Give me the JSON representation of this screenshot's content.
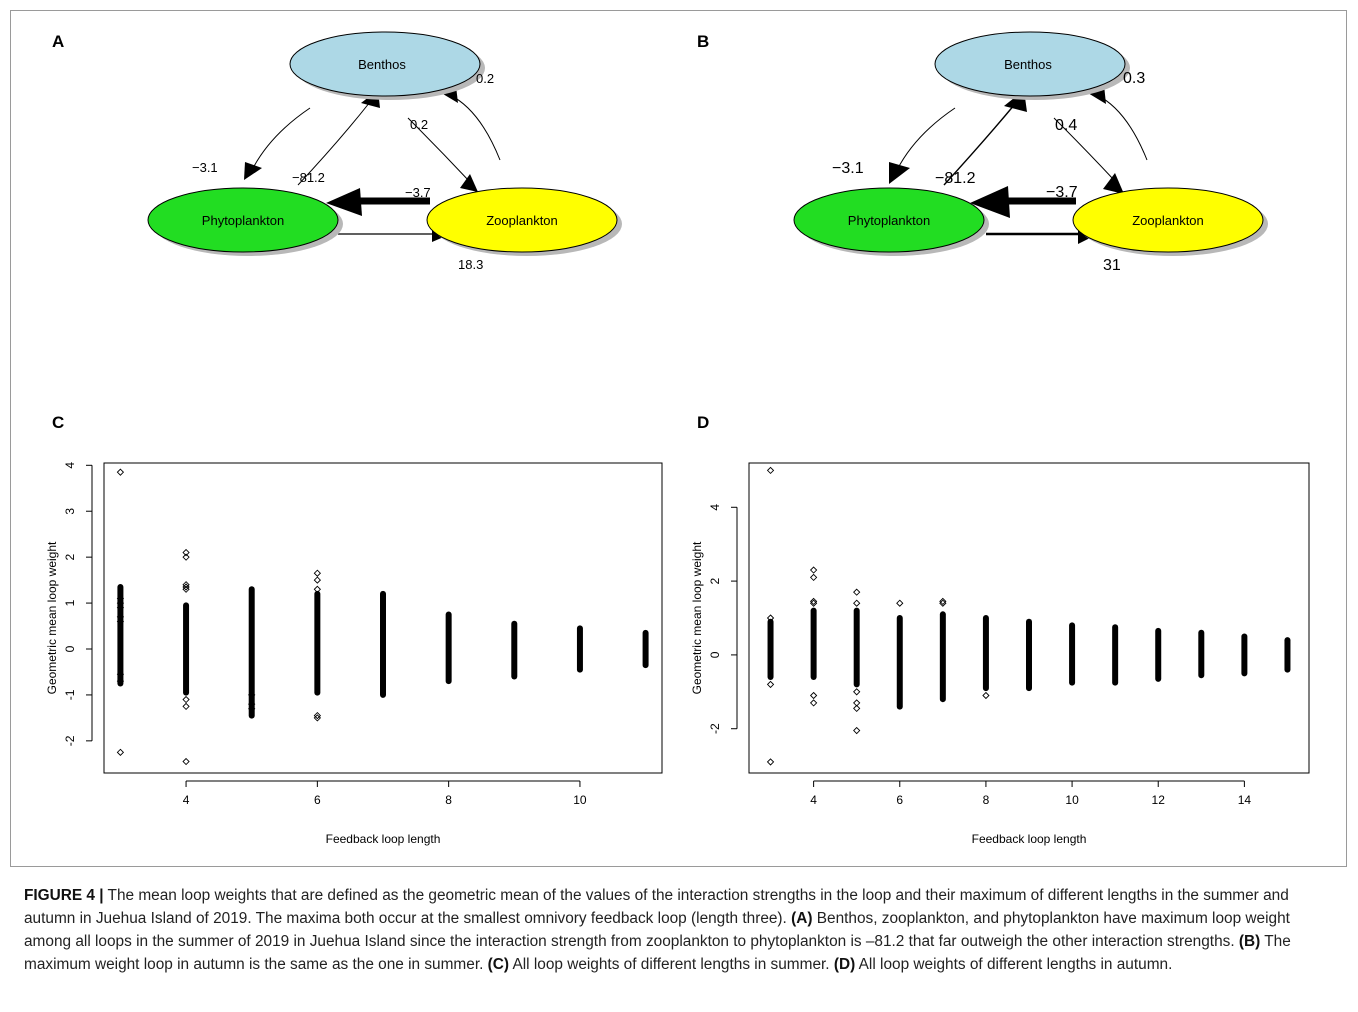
{
  "panels": {
    "A": {
      "letter": "A",
      "nodes": {
        "benthos": "Benthos",
        "phytoplankton": "Phytoplankton",
        "zooplankton": "Zooplankton"
      },
      "edge_labels": {
        "b_to_p": "−3.1",
        "z_to_p": "−81.2",
        "p_to_z_upper": "−3.7",
        "b_to_z": "0.2",
        "z_to_b": "0.2",
        "p_to_z": "18.3"
      },
      "colors": {
        "benthos": "#add8e6",
        "phytoplankton": "#22dd22",
        "zooplankton": "#ffff00"
      }
    },
    "B": {
      "letter": "B",
      "nodes": {
        "benthos": "Benthos",
        "phytoplankton": "Phytoplankton",
        "zooplankton": "Zooplankton"
      },
      "edge_labels": {
        "b_to_p": "−3.1",
        "z_to_p": "−81.2",
        "p_to_z_upper": "−3.7",
        "b_to_z": "0.4",
        "z_to_b": "0.3",
        "p_to_z": "31"
      },
      "colors": {
        "benthos": "#add8e6",
        "phytoplankton": "#22dd22",
        "zooplankton": "#ffff00"
      }
    },
    "C": {
      "letter": "C"
    },
    "D": {
      "letter": "D"
    }
  },
  "chart_data": [
    {
      "panel": "C",
      "type": "scatter",
      "xlabel": "Feedback loop length",
      "ylabel": "Geometric mean loop weight",
      "xlim": [
        2.75,
        11.25
      ],
      "ylim": [
        -2.7,
        4.05
      ],
      "xticks": [
        4,
        6,
        8,
        10
      ],
      "yticks": [
        -2,
        -1,
        0,
        1,
        2,
        3,
        4
      ],
      "series": [
        {
          "points": [
            {
              "x": 3,
              "min": -0.75,
              "max": 1.35,
              "outliers": [
                3.85,
                -2.25,
                1.1,
                1.0,
                0.9,
                0.7,
                0.6,
                -0.55,
                -0.7
              ]
            },
            {
              "x": 4,
              "min": -0.95,
              "max": 0.95,
              "outliers": [
                2.1,
                2.0,
                1.4,
                1.35,
                1.3,
                -1.1,
                -1.25,
                -2.45
              ]
            },
            {
              "x": 5,
              "min": -1.45,
              "max": 1.3,
              "outliers": [
                -1.3,
                -1.2,
                -1.0
              ]
            },
            {
              "x": 6,
              "min": -0.95,
              "max": 1.2,
              "outliers": [
                1.65,
                1.5,
                1.3,
                -1.45,
                -1.5
              ]
            },
            {
              "x": 7,
              "min": -1.0,
              "max": 1.2,
              "outliers": []
            },
            {
              "x": 8,
              "min": -0.7,
              "max": 0.75,
              "outliers": []
            },
            {
              "x": 9,
              "min": -0.6,
              "max": 0.55,
              "outliers": []
            },
            {
              "x": 10,
              "min": -0.45,
              "max": 0.45,
              "outliers": []
            },
            {
              "x": 11,
              "min": -0.35,
              "max": 0.35,
              "outliers": []
            }
          ]
        }
      ]
    },
    {
      "panel": "D",
      "type": "scatter",
      "xlabel": "Feedback loop length",
      "ylabel": "Geometric mean loop weight",
      "xlim": [
        2.5,
        15.5
      ],
      "ylim": [
        -3.2,
        5.2
      ],
      "xticks": [
        4,
        6,
        8,
        10,
        12,
        14
      ],
      "yticks": [
        -2,
        0,
        2,
        4
      ],
      "series": [
        {
          "points": [
            {
              "x": 3,
              "min": -0.6,
              "max": 0.9,
              "outliers": [
                5.0,
                -2.9,
                -0.8,
                1.0
              ]
            },
            {
              "x": 4,
              "min": -0.6,
              "max": 1.2,
              "outliers": [
                2.3,
                2.1,
                1.45,
                1.4,
                -1.1,
                -1.3
              ]
            },
            {
              "x": 5,
              "min": -0.8,
              "max": 1.2,
              "outliers": [
                1.7,
                1.4,
                -1.0,
                -1.3,
                -1.45,
                -2.05
              ]
            },
            {
              "x": 6,
              "min": -1.4,
              "max": 1.0,
              "outliers": [
                1.4
              ]
            },
            {
              "x": 7,
              "min": -1.2,
              "max": 1.1,
              "outliers": [
                1.45,
                1.4
              ]
            },
            {
              "x": 8,
              "min": -0.9,
              "max": 1.0,
              "outliers": [
                -1.1
              ]
            },
            {
              "x": 9,
              "min": -0.9,
              "max": 0.9,
              "outliers": []
            },
            {
              "x": 10,
              "min": -0.75,
              "max": 0.8,
              "outliers": []
            },
            {
              "x": 11,
              "min": -0.75,
              "max": 0.75,
              "outliers": []
            },
            {
              "x": 12,
              "min": -0.65,
              "max": 0.65,
              "outliers": []
            },
            {
              "x": 13,
              "min": -0.55,
              "max": 0.6,
              "outliers": []
            },
            {
              "x": 14,
              "min": -0.5,
              "max": 0.5,
              "outliers": []
            },
            {
              "x": 15,
              "min": -0.4,
              "max": 0.4,
              "outliers": []
            }
          ]
        }
      ]
    }
  ],
  "caption": {
    "label": "FIGURE 4 |",
    "intro": " The mean loop weights that are defined as the geometric mean of the values of the interaction strengths in the loop and their maximum of different lengths in the summer and autumn in Juehua Island of 2019. The maxima both occur at the smallest omnivory feedback loop (length three). ",
    "a_label": "(A)",
    "a_text": " Benthos, zooplankton, and phytoplankton have maximum loop weight among all loops in the summer of 2019 in Juehua Island since the interaction strength from zooplankton to phytoplankton is –81.2 that far outweigh the other interaction strengths. ",
    "b_label": "(B)",
    "b_text": " The maximum weight loop in autumn is the same as the one in summer. ",
    "c_label": "(C)",
    "c_text": " All loop weights of different lengths in summer. ",
    "d_label": "(D)",
    "d_text": " All loop weights of different lengths in autumn."
  }
}
